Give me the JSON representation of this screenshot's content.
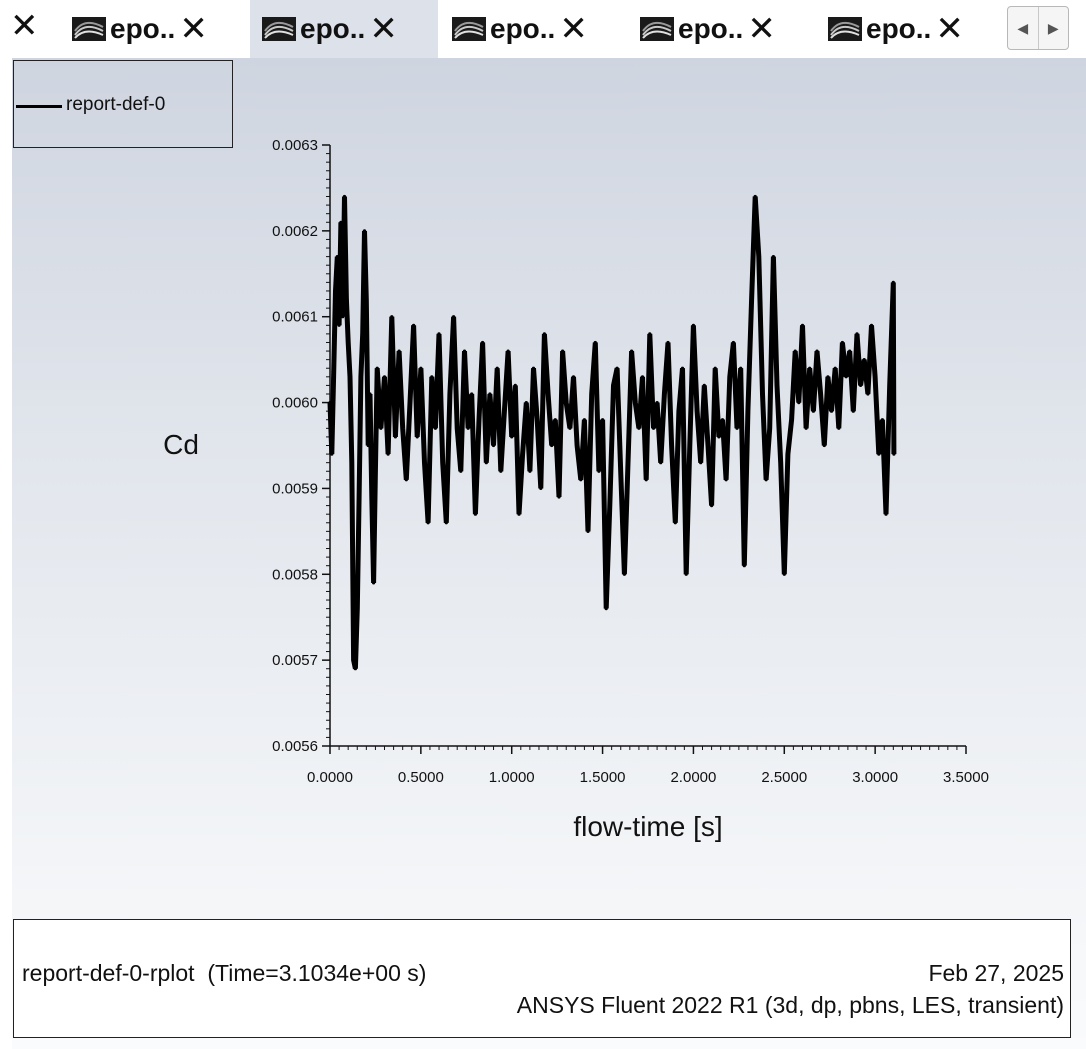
{
  "tabs": [
    {
      "label": "epo..",
      "close": "✕",
      "active": false
    },
    {
      "label": "epo..",
      "close": "✕",
      "active": true
    },
    {
      "label": "epo..",
      "close": "✕",
      "active": false
    },
    {
      "label": "epo..",
      "close": "✕",
      "active": false
    },
    {
      "label": "epo..",
      "close": "✕",
      "active": false
    }
  ],
  "lead_close": "✕",
  "tab_icon": "graphics-window-icon",
  "scroll": {
    "left": "◀",
    "right": "▶"
  },
  "legend": {
    "label": "report-def-0",
    "color": "#000000"
  },
  "footer": {
    "plot_name": "report-def-0-rplot",
    "time": "(Time=3.1034e+00 s)",
    "date": "Feb 27, 2025",
    "software": "ANSYS Fluent 2022 R1 (3d, dp, pbns, LES, transient)"
  },
  "chart_data": {
    "type": "line",
    "xlabel": "flow-time [s]",
    "ylabel": "Cd",
    "xlim": [
      0.0,
      3.5
    ],
    "ylim": [
      0.0056,
      0.0063
    ],
    "xticks": [
      "0.0000",
      "0.5000",
      "1.0000",
      "1.5000",
      "2.0000",
      "2.5000",
      "3.0000",
      "3.5000"
    ],
    "yticks": [
      "0.0056",
      "0.0057",
      "0.0058",
      "0.0059",
      "0.0060",
      "0.0061",
      "0.0062",
      "0.0063"
    ],
    "grid": false,
    "legend_position": "top-left",
    "series": [
      {
        "name": "report-def-0",
        "color": "#000000",
        "points": [
          [
            0.0,
            0.006
          ],
          [
            0.01,
            0.00594
          ],
          [
            0.02,
            0.00603
          ],
          [
            0.03,
            0.00613
          ],
          [
            0.04,
            0.00617
          ],
          [
            0.05,
            0.00609
          ],
          [
            0.06,
            0.00621
          ],
          [
            0.07,
            0.0061
          ],
          [
            0.08,
            0.00624
          ],
          [
            0.09,
            0.00612
          ],
          [
            0.1,
            0.00607
          ],
          [
            0.11,
            0.00603
          ],
          [
            0.12,
            0.00593
          ],
          [
            0.13,
            0.0057
          ],
          [
            0.14,
            0.00569
          ],
          [
            0.15,
            0.00576
          ],
          [
            0.16,
            0.00589
          ],
          [
            0.17,
            0.00603
          ],
          [
            0.18,
            0.00608
          ],
          [
            0.19,
            0.0062
          ],
          [
            0.2,
            0.00612
          ],
          [
            0.21,
            0.00595
          ],
          [
            0.22,
            0.00601
          ],
          [
            0.23,
            0.00589
          ],
          [
            0.24,
            0.00579
          ],
          [
            0.25,
            0.00592
          ],
          [
            0.26,
            0.00604
          ],
          [
            0.28,
            0.00597
          ],
          [
            0.3,
            0.00603
          ],
          [
            0.32,
            0.00594
          ],
          [
            0.34,
            0.0061
          ],
          [
            0.36,
            0.00596
          ],
          [
            0.38,
            0.00606
          ],
          [
            0.4,
            0.00597
          ],
          [
            0.42,
            0.00591
          ],
          [
            0.44,
            0.006
          ],
          [
            0.46,
            0.00609
          ],
          [
            0.48,
            0.00596
          ],
          [
            0.5,
            0.00604
          ],
          [
            0.52,
            0.00593
          ],
          [
            0.54,
            0.00586
          ],
          [
            0.56,
            0.00603
          ],
          [
            0.58,
            0.00597
          ],
          [
            0.6,
            0.00608
          ],
          [
            0.62,
            0.00593
          ],
          [
            0.64,
            0.00586
          ],
          [
            0.66,
            0.00601
          ],
          [
            0.68,
            0.0061
          ],
          [
            0.7,
            0.00597
          ],
          [
            0.72,
            0.00592
          ],
          [
            0.74,
            0.00606
          ],
          [
            0.76,
            0.00597
          ],
          [
            0.78,
            0.00601
          ],
          [
            0.8,
            0.00587
          ],
          [
            0.82,
            0.00598
          ],
          [
            0.84,
            0.00607
          ],
          [
            0.86,
            0.00593
          ],
          [
            0.88,
            0.00601
          ],
          [
            0.9,
            0.00595
          ],
          [
            0.92,
            0.00604
          ],
          [
            0.94,
            0.00592
          ],
          [
            0.96,
            0.00599
          ],
          [
            0.98,
            0.00606
          ],
          [
            1.0,
            0.00596
          ],
          [
            1.02,
            0.00602
          ],
          [
            1.04,
            0.00587
          ],
          [
            1.06,
            0.00594
          ],
          [
            1.08,
            0.006
          ],
          [
            1.1,
            0.00592
          ],
          [
            1.12,
            0.00604
          ],
          [
            1.14,
            0.00598
          ],
          [
            1.16,
            0.0059
          ],
          [
            1.18,
            0.00608
          ],
          [
            1.2,
            0.00601
          ],
          [
            1.22,
            0.00595
          ],
          [
            1.24,
            0.00598
          ],
          [
            1.26,
            0.00589
          ],
          [
            1.28,
            0.00606
          ],
          [
            1.3,
            0.006
          ],
          [
            1.32,
            0.00597
          ],
          [
            1.34,
            0.00603
          ],
          [
            1.36,
            0.00595
          ],
          [
            1.38,
            0.00591
          ],
          [
            1.4,
            0.00598
          ],
          [
            1.42,
            0.00585
          ],
          [
            1.44,
            0.00601
          ],
          [
            1.46,
            0.00607
          ],
          [
            1.48,
            0.00592
          ],
          [
            1.5,
            0.00598
          ],
          [
            1.52,
            0.00576
          ],
          [
            1.54,
            0.00588
          ],
          [
            1.56,
            0.00602
          ],
          [
            1.58,
            0.00604
          ],
          [
            1.6,
            0.00592
          ],
          [
            1.62,
            0.0058
          ],
          [
            1.64,
            0.00593
          ],
          [
            1.66,
            0.00606
          ],
          [
            1.68,
            0.006
          ],
          [
            1.7,
            0.00597
          ],
          [
            1.72,
            0.00603
          ],
          [
            1.74,
            0.00591
          ],
          [
            1.76,
            0.00608
          ],
          [
            1.78,
            0.00597
          ],
          [
            1.8,
            0.006
          ],
          [
            1.82,
            0.00593
          ],
          [
            1.84,
            0.00601
          ],
          [
            1.86,
            0.00607
          ],
          [
            1.88,
            0.00595
          ],
          [
            1.9,
            0.00586
          ],
          [
            1.92,
            0.00599
          ],
          [
            1.94,
            0.00604
          ],
          [
            1.96,
            0.0058
          ],
          [
            1.98,
            0.00595
          ],
          [
            2.0,
            0.00609
          ],
          [
            2.02,
            0.00599
          ],
          [
            2.04,
            0.00593
          ],
          [
            2.06,
            0.00602
          ],
          [
            2.08,
            0.00595
          ],
          [
            2.1,
            0.00588
          ],
          [
            2.12,
            0.00604
          ],
          [
            2.14,
            0.00596
          ],
          [
            2.16,
            0.00598
          ],
          [
            2.18,
            0.00591
          ],
          [
            2.2,
            0.00603
          ],
          [
            2.22,
            0.00607
          ],
          [
            2.24,
            0.00597
          ],
          [
            2.26,
            0.00604
          ],
          [
            2.28,
            0.00581
          ],
          [
            2.3,
            0.00599
          ],
          [
            2.32,
            0.00612
          ],
          [
            2.34,
            0.00624
          ],
          [
            2.36,
            0.00617
          ],
          [
            2.38,
            0.00601
          ],
          [
            2.4,
            0.00591
          ],
          [
            2.42,
            0.00597
          ],
          [
            2.44,
            0.00617
          ],
          [
            2.46,
            0.00602
          ],
          [
            2.48,
            0.00593
          ],
          [
            2.5,
            0.0058
          ],
          [
            2.52,
            0.00594
          ],
          [
            2.54,
            0.00598
          ],
          [
            2.56,
            0.00606
          ],
          [
            2.58,
            0.006
          ],
          [
            2.6,
            0.00609
          ],
          [
            2.62,
            0.00597
          ],
          [
            2.64,
            0.00604
          ],
          [
            2.66,
            0.00599
          ],
          [
            2.68,
            0.00606
          ],
          [
            2.7,
            0.00601
          ],
          [
            2.72,
            0.00595
          ],
          [
            2.74,
            0.00603
          ],
          [
            2.76,
            0.00599
          ],
          [
            2.78,
            0.00604
          ],
          [
            2.8,
            0.00597
          ],
          [
            2.82,
            0.00607
          ],
          [
            2.84,
            0.00603
          ],
          [
            2.86,
            0.00606
          ],
          [
            2.88,
            0.00599
          ],
          [
            2.9,
            0.00608
          ],
          [
            2.92,
            0.00602
          ],
          [
            2.94,
            0.00605
          ],
          [
            2.96,
            0.00601
          ],
          [
            2.98,
            0.00609
          ],
          [
            3.0,
            0.00603
          ],
          [
            3.02,
            0.00594
          ],
          [
            3.04,
            0.00598
          ],
          [
            3.06,
            0.00587
          ],
          [
            3.08,
            0.00602
          ],
          [
            3.1,
            0.00614
          ],
          [
            3.1034,
            0.00594
          ]
        ]
      }
    ]
  }
}
